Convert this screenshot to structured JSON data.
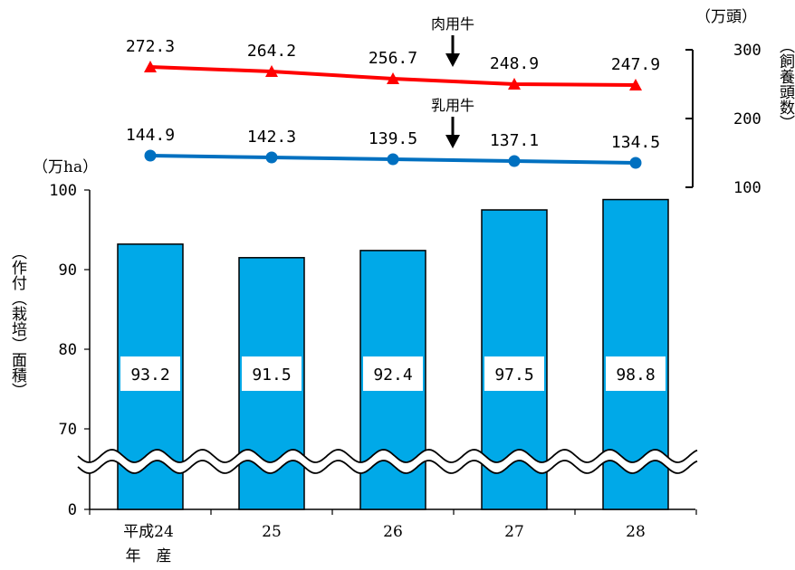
{
  "chart_data": {
    "type": "bar",
    "categories": [
      "平成24\n年　産",
      "25",
      "26",
      "27",
      "28"
    ],
    "bar_values": [
      93.2,
      91.5,
      92.4,
      97.5,
      98.8
    ],
    "bar_labels": [
      "93.2",
      "91.5",
      "92.4",
      "97.5",
      "98.8"
    ],
    "bar_color": "#00a9e8",
    "left_axis": {
      "unit": "（万ha）",
      "label": "（作付（栽培）面積）",
      "ticks": [
        "0",
        "70",
        "80",
        "90",
        "100"
      ],
      "tick_values": [
        70,
        80,
        90,
        100
      ],
      "ylim": [
        65,
        100
      ],
      "axis_break": true
    },
    "right_axis": {
      "unit": "（万頭）",
      "label": "（飼養頭数）",
      "ticks": [
        "100",
        "200",
        "300"
      ],
      "tick_values": [
        100,
        200,
        300
      ]
    },
    "series": [
      {
        "name": "肉用牛",
        "type": "line",
        "marker": "triangle",
        "color": "#ff0000",
        "values": [
          272.3,
          264.2,
          256.7,
          248.9,
          247.9
        ],
        "labels": [
          "272.3",
          "264.2",
          "256.7",
          "248.9",
          "247.9"
        ]
      },
      {
        "name": "乳用牛",
        "type": "line",
        "marker": "circle",
        "color": "#0070c0",
        "values": [
          144.9,
          142.3,
          139.5,
          137.1,
          134.5
        ],
        "labels": [
          "144.9",
          "142.3",
          "139.5",
          "137.1",
          "134.5"
        ]
      }
    ]
  }
}
